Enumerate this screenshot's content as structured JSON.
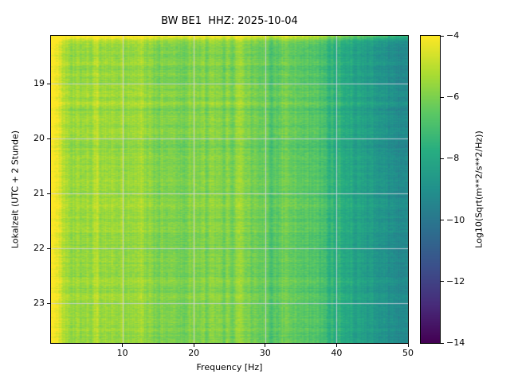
{
  "figure": {
    "background": "#ffffff",
    "text_color": "#000000"
  },
  "chart_data": {
    "type": "heatmap",
    "title": "BW BE1  HHZ: 2025-10-04",
    "xlabel": "Frequency [Hz]",
    "ylabel": "Lokalzeit (UTC + 2 Stunde)",
    "colorbar_label": "Log10(Sqrt(m**2/s**2/Hz))",
    "station": "BW BE1 HHZ",
    "date": "2025-10-04",
    "x_range_hz": [
      0,
      50
    ],
    "x_ticks": [
      10,
      20,
      30,
      40,
      50
    ],
    "y_time_range_hours": [
      18.13,
      23.72
    ],
    "y_ticks_hours": [
      19,
      20,
      21,
      22,
      23
    ],
    "y_tick_labels": [
      "19",
      "20",
      "21",
      "22",
      "23"
    ],
    "colorbar_range": [
      -14,
      -4
    ],
    "colorbar_ticks": [
      -4,
      -6,
      -8,
      -10,
      -12,
      -14
    ],
    "colorbar_tick_labels": [
      "−4",
      "−6",
      "−8",
      "−10",
      "−12",
      "−14"
    ],
    "grid": true,
    "grid_color": "#d4d4e0",
    "colormap": "viridis",
    "colormap_stops": [
      "#440154",
      "#472c7a",
      "#3b518b",
      "#2c718e",
      "#21918c",
      "#27ad81",
      "#5cc863",
      "#aadc32",
      "#fde725"
    ],
    "spectrum_profile": {
      "freq_hz": [
        0,
        0.5,
        1,
        1.5,
        2,
        3,
        5,
        8,
        10,
        12,
        15,
        20,
        25,
        27,
        30,
        33,
        35,
        38,
        40,
        43,
        46,
        50
      ],
      "log10_sqrt_psd": [
        -4.0,
        -4.1,
        -4.4,
        -4.9,
        -5.2,
        -5.4,
        -5.5,
        -5.6,
        -5.7,
        -5.6,
        -5.9,
        -6.0,
        -6.0,
        -5.8,
        -6.3,
        -6.3,
        -6.5,
        -7.0,
        -7.6,
        -8.2,
        -8.8,
        -9.4
      ]
    },
    "features": {
      "bright_top_band": true,
      "bright_stripes_hz": [
        6.5,
        12.5,
        26.5
      ],
      "dark_stripes_hz": [
        31,
        34.5
      ],
      "bright_row_fractions": [
        0.22,
        0.55,
        0.8
      ]
    }
  }
}
